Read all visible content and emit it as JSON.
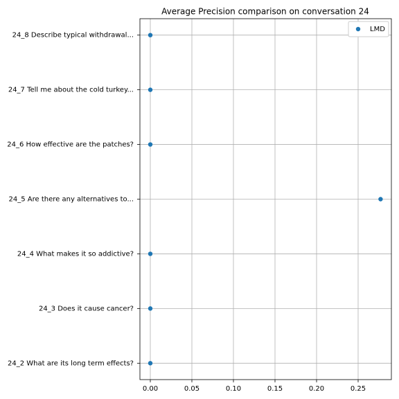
{
  "chart_data": {
    "type": "scatter",
    "orientation": "horizontal",
    "title": "Average Precision comparison on conversation 24",
    "categories": [
      "24_2 What are its long term effects?",
      "24_3 Does it cause cancer?",
      "24_4 What makes it so addictive?",
      "24_5 Are there any alternatives to...",
      "24_6 How effective are the patches?",
      "24_7 Tell me about the cold turkey...",
      "24_8 Describe typical withdrawal..."
    ],
    "series": [
      {
        "name": "LMD",
        "color": "#1f77b4",
        "values": [
          0,
          0,
          0,
          0.277,
          0,
          0,
          0
        ]
      }
    ],
    "xlim": [
      -0.0125,
      0.29
    ],
    "xticks": [
      {
        "value": 0,
        "label": "0.00"
      },
      0.05,
      {
        "value": 0.1,
        "label": "0.10"
      },
      0.15,
      {
        "value": 0.2,
        "label": "0.20"
      },
      0.25
    ],
    "grid": true,
    "legend": "upper right"
  }
}
